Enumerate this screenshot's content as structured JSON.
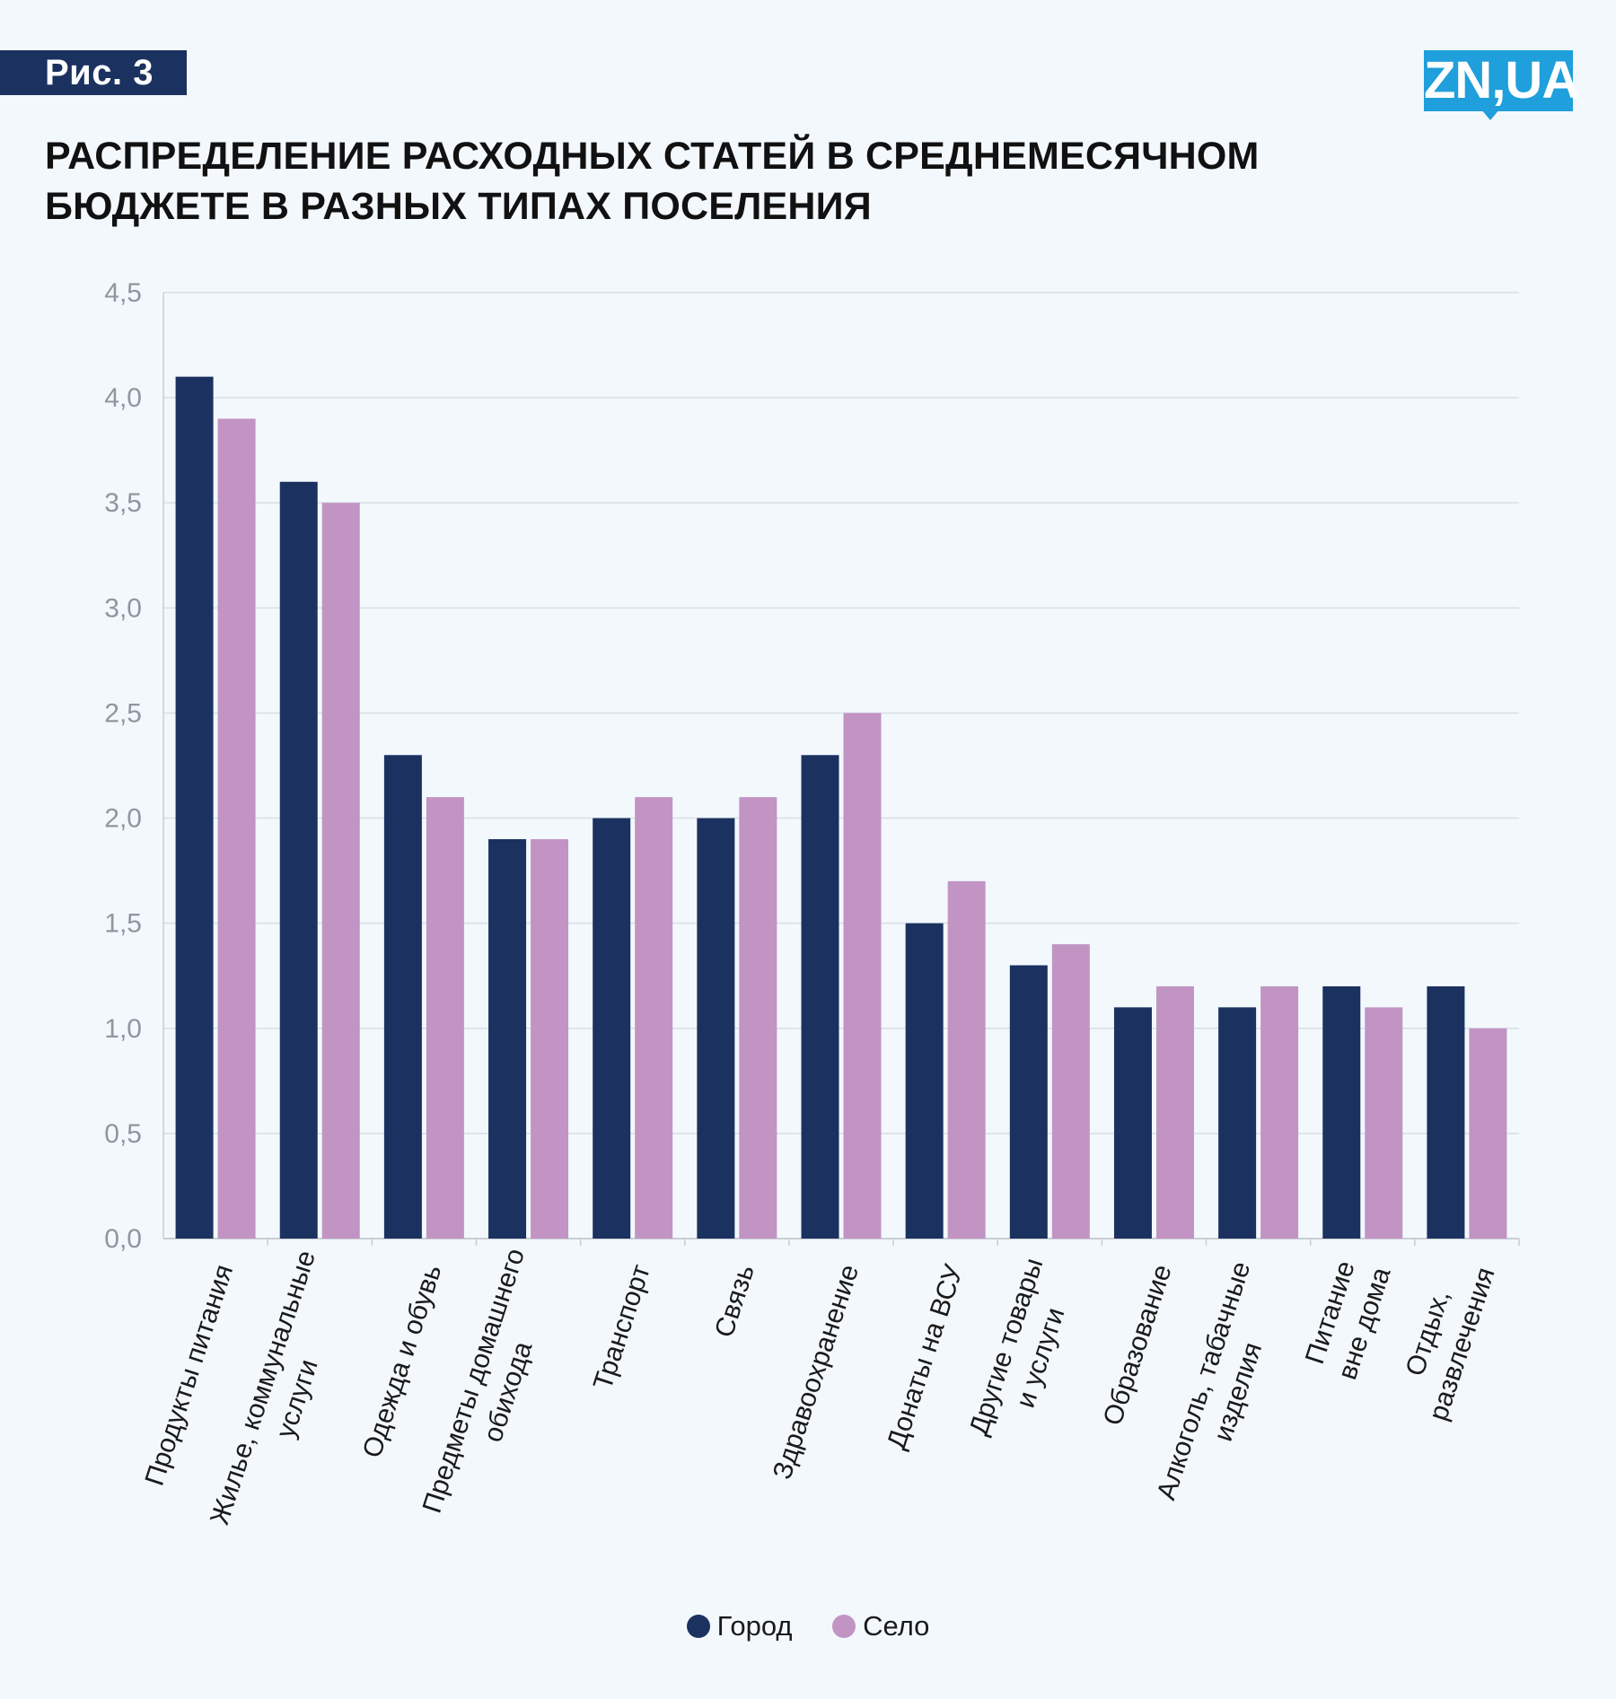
{
  "figure_label": "Рис. 3",
  "logo_text": "ZN,UA",
  "title_line1": "РАСПРЕДЕЛЕНИЕ РАСХОДНЫХ СТАТЕЙ В СРЕДНЕМЕСЯЧНОМ",
  "title_line2": "БЮДЖЕТЕ В РАЗНЫХ ТИПАХ ПОСЕЛЕНИЯ",
  "colors": {
    "city": "#1b3260",
    "village": "#c194c4",
    "grid": "#d9dee4",
    "axis": "#c9ced4",
    "logo": "#1f9fdb"
  },
  "chart_data": {
    "type": "bar",
    "title": "РАСПРЕДЕЛЕНИЕ РАСХОДНЫХ СТАТЕЙ В СРЕДНЕМЕСЯЧНОМ БЮДЖЕТЕ В РАЗНЫХ ТИПАХ ПОСЕЛЕНИЯ",
    "xlabel": "",
    "ylabel": "",
    "ylim": [
      0,
      4.5
    ],
    "yticks": [
      "0,0",
      "0,5",
      "1,0",
      "1,5",
      "2,0",
      "2,5",
      "3,0",
      "3,5",
      "4,0",
      "4,5"
    ],
    "grid": true,
    "legend_position": "bottom-center",
    "categories": [
      [
        "Продукты питания"
      ],
      [
        "Жилье, коммунальные",
        "услуги"
      ],
      [
        "Одежда и обувь"
      ],
      [
        "Предметы домашнего",
        "обихода"
      ],
      [
        "Транспорт"
      ],
      [
        "Связь"
      ],
      [
        "Здравоохранение"
      ],
      [
        "Донаты на ВСУ"
      ],
      [
        "Другие товары",
        "и услуги"
      ],
      [
        "Образование"
      ],
      [
        "Алкоголь, табачные",
        "изделия"
      ],
      [
        "Питание",
        "вне дома"
      ],
      [
        "Отдых,",
        "развлечения"
      ]
    ],
    "series": [
      {
        "name": "Город",
        "color": "#1b3260",
        "values": [
          4.1,
          3.6,
          2.3,
          1.9,
          2.0,
          2.0,
          2.3,
          1.5,
          1.3,
          1.1,
          1.1,
          1.2,
          1.2
        ]
      },
      {
        "name": "Село",
        "color": "#c194c4",
        "values": [
          3.9,
          3.5,
          2.1,
          1.9,
          2.1,
          2.1,
          2.5,
          1.7,
          1.4,
          1.2,
          1.2,
          1.1,
          1.0
        ]
      }
    ]
  }
}
